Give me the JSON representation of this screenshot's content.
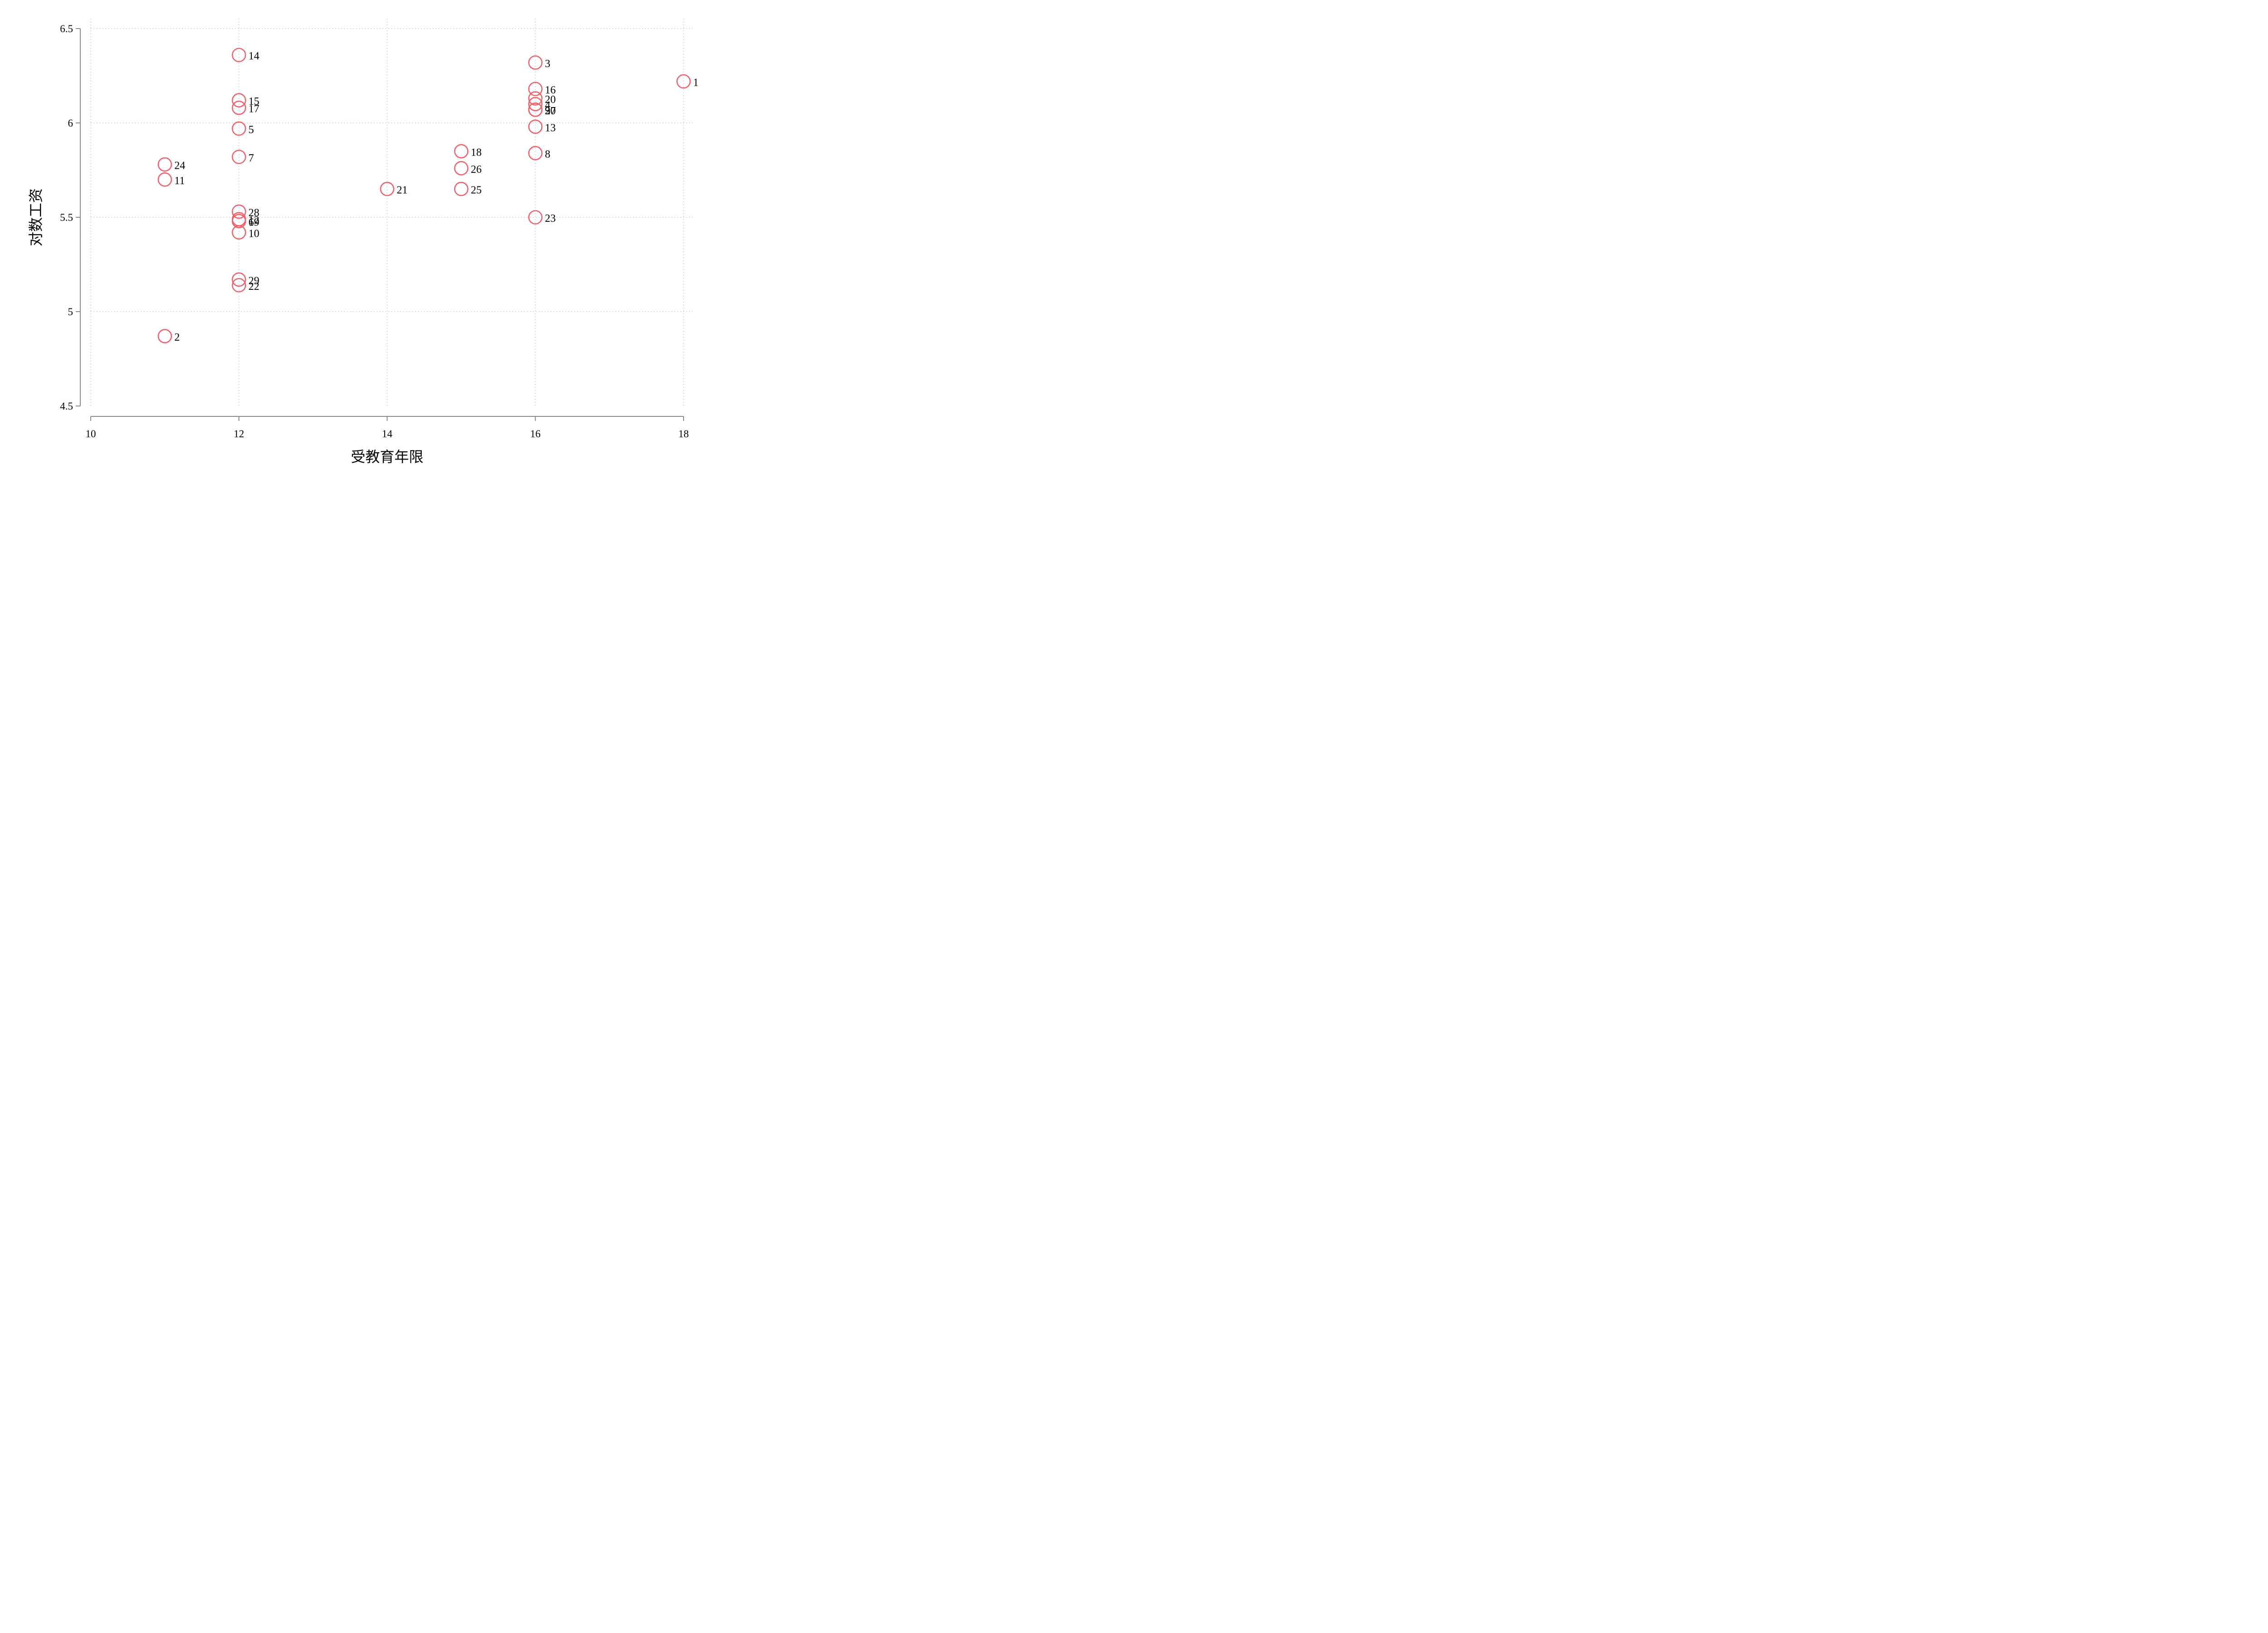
{
  "chart_data": {
    "type": "scatter",
    "title": "",
    "xlabel": "受教育年限",
    "ylabel": "对数工资",
    "xlim": [
      10,
      18
    ],
    "ylim": [
      4.5,
      6.5
    ],
    "xticks": [
      10,
      12,
      14,
      16,
      18
    ],
    "xtick_labels": [
      "10",
      "12",
      "14",
      "16",
      "18"
    ],
    "yticks": [
      4.5,
      5,
      5.5,
      6,
      6.5
    ],
    "ytick_labels": [
      "4.5",
      "5",
      "5.5",
      "6",
      "6.5"
    ],
    "grid": true,
    "marker_color": "#f0626b",
    "points": [
      {
        "label": "1",
        "x": 18,
        "y": 6.22
      },
      {
        "label": "2",
        "x": 11,
        "y": 4.87
      },
      {
        "label": "3",
        "x": 16,
        "y": 6.32
      },
      {
        "label": "4",
        "x": 16,
        "y": 6.1
      },
      {
        "label": "5",
        "x": 12,
        "y": 5.97
      },
      {
        "label": "6",
        "x": 12,
        "y": 5.48
      },
      {
        "label": "7",
        "x": 12,
        "y": 5.82
      },
      {
        "label": "8",
        "x": 16,
        "y": 5.84
      },
      {
        "label": "9",
        "x": 16,
        "y": 6.07
      },
      {
        "label": "10",
        "x": 12,
        "y": 5.42
      },
      {
        "label": "11",
        "x": 11,
        "y": 5.7
      },
      {
        "label": "12",
        "x": 12,
        "y": 5.49
      },
      {
        "label": "13",
        "x": 16,
        "y": 5.98
      },
      {
        "label": "14",
        "x": 12,
        "y": 6.36
      },
      {
        "label": "15",
        "x": 12,
        "y": 6.12
      },
      {
        "label": "16",
        "x": 16,
        "y": 6.18
      },
      {
        "label": "17",
        "x": 12,
        "y": 6.08
      },
      {
        "label": "18",
        "x": 15,
        "y": 5.85
      },
      {
        "label": "19",
        "x": 12,
        "y": 5.48
      },
      {
        "label": "20",
        "x": 16,
        "y": 6.13
      },
      {
        "label": "21",
        "x": 14,
        "y": 5.65
      },
      {
        "label": "22",
        "x": 12,
        "y": 5.14
      },
      {
        "label": "23",
        "x": 16,
        "y": 5.5
      },
      {
        "label": "24",
        "x": 11,
        "y": 5.78
      },
      {
        "label": "25",
        "x": 15,
        "y": 5.65
      },
      {
        "label": "26",
        "x": 15,
        "y": 5.76
      },
      {
        "label": "27",
        "x": 16,
        "y": 6.07
      },
      {
        "label": "28",
        "x": 12,
        "y": 5.53
      },
      {
        "label": "29",
        "x": 12,
        "y": 5.17
      },
      {
        "label": "30",
        "x": 16,
        "y": 6.07
      }
    ]
  }
}
